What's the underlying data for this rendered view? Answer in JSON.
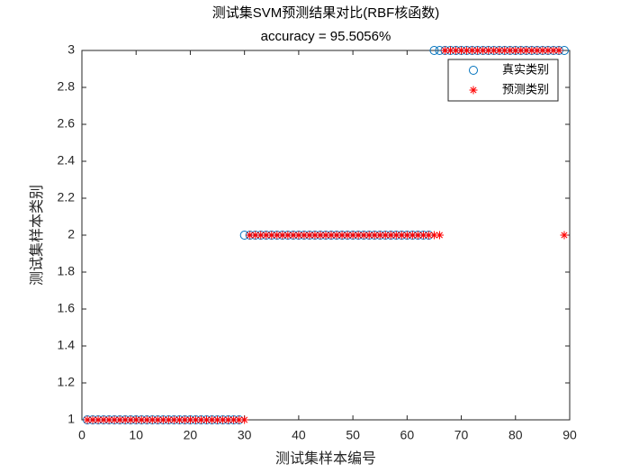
{
  "chart_data": {
    "type": "scatter",
    "title": "测试集SVM预测结果对比(RBF核函数)",
    "subtitle": "accuracy = 95.5056%",
    "xlabel": "测试集样本编号",
    "ylabel": "测试集样本类别",
    "x": [
      1,
      2,
      3,
      4,
      5,
      6,
      7,
      8,
      9,
      10,
      11,
      12,
      13,
      14,
      15,
      16,
      17,
      18,
      19,
      20,
      21,
      22,
      23,
      24,
      25,
      26,
      27,
      28,
      29,
      30,
      31,
      32,
      33,
      34,
      35,
      36,
      37,
      38,
      39,
      40,
      41,
      42,
      43,
      44,
      45,
      46,
      47,
      48,
      49,
      50,
      51,
      52,
      53,
      54,
      55,
      56,
      57,
      58,
      59,
      60,
      61,
      62,
      63,
      64,
      65,
      66,
      67,
      68,
      69,
      70,
      71,
      72,
      73,
      74,
      75,
      76,
      77,
      78,
      79,
      80,
      81,
      82,
      83,
      84,
      85,
      86,
      87,
      88,
      89
    ],
    "series": [
      {
        "name": "真实类别",
        "color": "#0072bd",
        "marker": "circle",
        "values": [
          1,
          1,
          1,
          1,
          1,
          1,
          1,
          1,
          1,
          1,
          1,
          1,
          1,
          1,
          1,
          1,
          1,
          1,
          1,
          1,
          1,
          1,
          1,
          1,
          1,
          1,
          1,
          1,
          1,
          2,
          2,
          2,
          2,
          2,
          2,
          2,
          2,
          2,
          2,
          2,
          2,
          2,
          2,
          2,
          2,
          2,
          2,
          2,
          2,
          2,
          2,
          2,
          2,
          2,
          2,
          2,
          2,
          2,
          2,
          2,
          2,
          2,
          2,
          2,
          3,
          3,
          3,
          3,
          3,
          3,
          3,
          3,
          3,
          3,
          3,
          3,
          3,
          3,
          3,
          3,
          3,
          3,
          3,
          3,
          3,
          3,
          3,
          3,
          3
        ]
      },
      {
        "name": "预测类别",
        "color": "#ff0000",
        "marker": "asterisk",
        "values": [
          1,
          1,
          1,
          1,
          1,
          1,
          1,
          1,
          1,
          1,
          1,
          1,
          1,
          1,
          1,
          1,
          1,
          1,
          1,
          1,
          1,
          1,
          1,
          1,
          1,
          1,
          1,
          1,
          1,
          1,
          2,
          2,
          2,
          2,
          2,
          2,
          2,
          2,
          2,
          2,
          2,
          2,
          2,
          2,
          2,
          2,
          2,
          2,
          2,
          2,
          2,
          2,
          2,
          2,
          2,
          2,
          2,
          2,
          2,
          2,
          2,
          2,
          2,
          2,
          2,
          2,
          3,
          3,
          3,
          3,
          3,
          3,
          3,
          3,
          3,
          3,
          3,
          3,
          3,
          3,
          3,
          3,
          3,
          3,
          3,
          3,
          3,
          3,
          2
        ]
      }
    ],
    "xlim": [
      0,
      90
    ],
    "xticks": [
      0,
      10,
      20,
      30,
      40,
      50,
      60,
      70,
      80,
      90
    ],
    "ylim": [
      1,
      3
    ],
    "yticks": [
      1,
      1.2,
      1.4,
      1.6,
      1.8,
      2,
      2.2,
      2.4,
      2.6,
      2.8,
      3
    ],
    "legend": "northeast"
  }
}
